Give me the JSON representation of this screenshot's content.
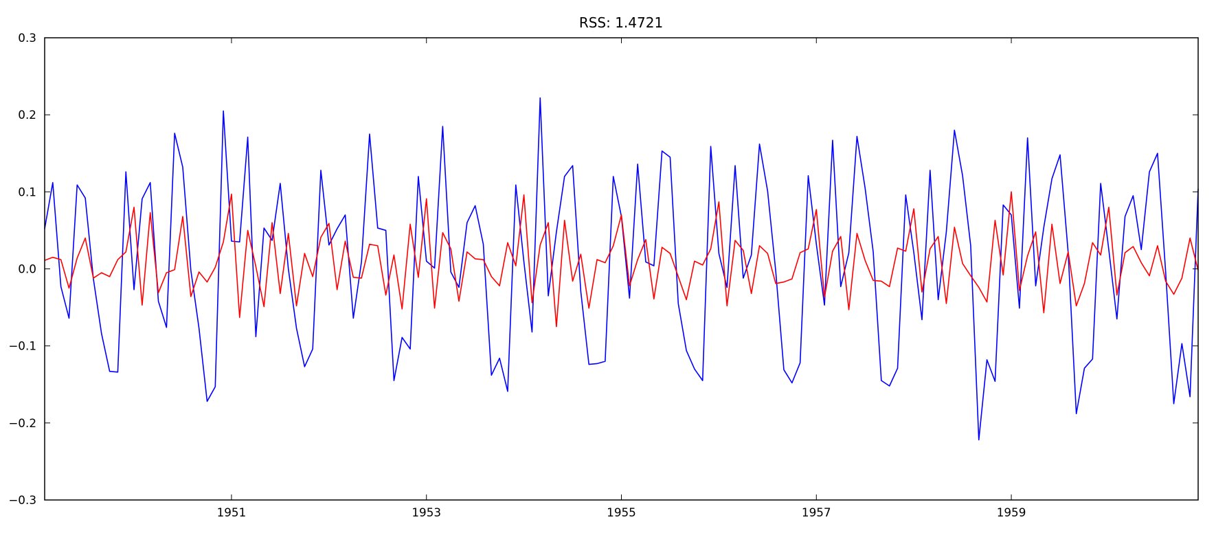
{
  "chart_data": {
    "type": "line",
    "title": "RSS: 1.4721",
    "xlabel": "",
    "ylabel": "",
    "x_start": "1949-02",
    "x_step": "month",
    "xlim": [
      "1949-02",
      "1960-12"
    ],
    "ylim": [
      -0.3,
      0.3
    ],
    "x_ticks": [
      {
        "value": "1951-01",
        "label": "1951"
      },
      {
        "value": "1953-01",
        "label": "1953"
      },
      {
        "value": "1955-01",
        "label": "1955"
      },
      {
        "value": "1957-01",
        "label": "1957"
      },
      {
        "value": "1959-01",
        "label": "1959"
      }
    ],
    "y_ticks": [
      {
        "value": 0.3,
        "label": "0.3"
      },
      {
        "value": 0.2,
        "label": "0.2"
      },
      {
        "value": 0.1,
        "label": "0.1"
      },
      {
        "value": 0.0,
        "label": "0.0"
      },
      {
        "value": -0.1,
        "label": "−0.1"
      },
      {
        "value": -0.2,
        "label": "−0.2"
      },
      {
        "value": -0.3,
        "label": "−0.3"
      }
    ],
    "grid": false,
    "legend": "none",
    "series": [
      {
        "color": "#0000ff",
        "values": [
          0.052,
          0.112,
          -0.023,
          -0.064,
          0.109,
          0.092,
          -0.013,
          -0.084,
          -0.133,
          -0.134,
          0.126,
          -0.027,
          0.091,
          0.112,
          -0.042,
          -0.076,
          0.176,
          0.132,
          -0.002,
          -0.077,
          -0.172,
          -0.153,
          0.205,
          0.036,
          0.035,
          0.171,
          -0.088,
          0.053,
          0.037,
          0.111,
          0.0,
          -0.077,
          -0.127,
          -0.104,
          0.128,
          0.031,
          0.052,
          0.07,
          -0.064,
          0.009,
          0.175,
          0.053,
          0.05,
          -0.145,
          -0.089,
          -0.104,
          0.12,
          0.01,
          0.001,
          0.185,
          -0.004,
          -0.024,
          0.06,
          0.082,
          0.032,
          -0.138,
          -0.116,
          -0.159,
          0.109,
          0.009,
          -0.082,
          0.222,
          -0.035,
          0.048,
          0.12,
          0.134,
          -0.029,
          -0.124,
          -0.123,
          -0.12,
          0.12,
          0.068,
          -0.038,
          0.136,
          0.009,
          0.004,
          0.153,
          0.145,
          -0.045,
          -0.106,
          -0.13,
          -0.145,
          0.159,
          0.02,
          -0.024,
          0.134,
          -0.012,
          0.018,
          0.162,
          0.101,
          -0.003,
          -0.131,
          -0.148,
          -0.122,
          0.121,
          0.032,
          -0.047,
          0.167,
          -0.023,
          0.021,
          0.172,
          0.105,
          0.022,
          -0.145,
          -0.152,
          -0.129,
          0.096,
          0.021,
          -0.066,
          0.128,
          -0.04,
          0.048,
          0.18,
          0.121,
          0.03,
          -0.222,
          -0.118,
          -0.146,
          0.083,
          0.07,
          -0.051,
          0.17,
          -0.022,
          0.054,
          0.117,
          0.148,
          0.021,
          -0.188,
          -0.129,
          -0.117,
          0.111,
          0.025,
          -0.065,
          0.068,
          0.095,
          0.025,
          0.126,
          0.15,
          -0.004,
          -0.175,
          -0.097,
          -0.166,
          0.104
        ]
      },
      {
        "color": "#ff0000",
        "values": [
          0.011,
          0.015,
          0.012,
          -0.025,
          0.014,
          0.04,
          -0.012,
          -0.005,
          -0.01,
          0.012,
          0.022,
          0.08,
          -0.047,
          0.073,
          -0.031,
          -0.005,
          -0.001,
          0.068,
          -0.036,
          -0.004,
          -0.017,
          0.002,
          0.035,
          0.097,
          -0.063,
          0.05,
          0.003,
          -0.049,
          0.06,
          -0.032,
          0.046,
          -0.048,
          0.02,
          -0.01,
          0.041,
          0.059,
          -0.027,
          0.036,
          -0.011,
          -0.012,
          0.032,
          0.03,
          -0.034,
          0.018,
          -0.052,
          0.058,
          -0.011,
          0.091,
          -0.051,
          0.047,
          0.026,
          -0.042,
          0.022,
          0.013,
          0.012,
          -0.01,
          -0.022,
          0.034,
          0.004,
          0.096,
          -0.044,
          0.031,
          0.06,
          -0.075,
          0.063,
          -0.016,
          0.019,
          -0.051,
          0.012,
          0.008,
          0.03,
          0.07,
          -0.022,
          0.012,
          0.038,
          -0.039,
          0.028,
          0.02,
          -0.01,
          -0.04,
          0.01,
          0.005,
          0.026,
          0.087,
          -0.048,
          0.037,
          0.024,
          -0.032,
          0.03,
          0.02,
          -0.019,
          -0.017,
          -0.013,
          0.021,
          0.026,
          0.077,
          -0.037,
          0.023,
          0.042,
          -0.053,
          0.046,
          0.011,
          -0.015,
          -0.016,
          -0.023,
          0.027,
          0.023,
          0.078,
          -0.03,
          0.026,
          0.042,
          -0.045,
          0.054,
          0.007,
          -0.009,
          -0.024,
          -0.043,
          0.063,
          -0.008,
          0.1,
          -0.028,
          0.017,
          0.048,
          -0.057,
          0.058,
          -0.019,
          0.022,
          -0.048,
          -0.019,
          0.034,
          0.018,
          0.08,
          -0.034,
          0.021,
          0.029,
          0.008,
          -0.009,
          0.03,
          -0.016,
          -0.033,
          -0.012,
          0.04,
          -0.002
        ]
      }
    ]
  }
}
